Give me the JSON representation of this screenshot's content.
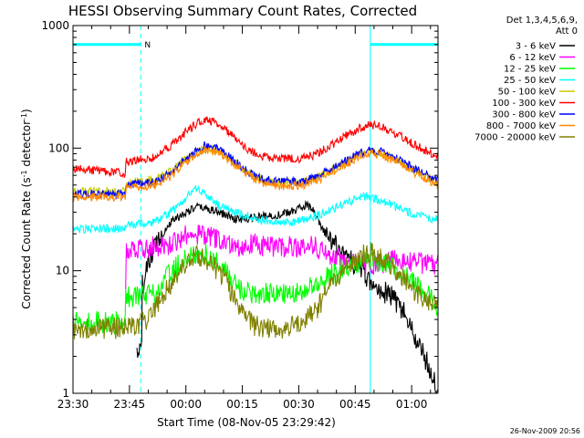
{
  "chart_data": {
    "type": "line",
    "title": "HESSI Observing Summary Count Rates, Corrected",
    "xlabel": "Start Time (08-Nov-05 23:29:42)",
    "ylabel_parts": [
      "Corrected Count Rate (s",
      "-1",
      " detector",
      "-1",
      ")"
    ],
    "yscale": "log",
    "ylim": [
      1,
      1000
    ],
    "xlim": [
      0,
      97
    ],
    "x_units": "minutes from 23:30",
    "x_ticks": [
      {
        "x": 0,
        "label": "23:30"
      },
      {
        "x": 15,
        "label": "23:45"
      },
      {
        "x": 30,
        "label": "00:00"
      },
      {
        "x": 45,
        "label": "00:15"
      },
      {
        "x": 60,
        "label": "00:30"
      },
      {
        "x": 75,
        "label": "00:45"
      },
      {
        "x": 90,
        "label": "01:00"
      }
    ],
    "y_ticks": [
      {
        "y": 1000,
        "label": "1000"
      },
      {
        "y": 100,
        "label": "100"
      },
      {
        "y": 10,
        "label": "10"
      },
      {
        "y": 1,
        "label": "1"
      }
    ],
    "legend": {
      "placement": "right",
      "header": [
        "Det 1,3,4,5,6,9,",
        "Att 0"
      ]
    },
    "night_markers": {
      "color": "#00ffff",
      "solid_lines_x": [
        0,
        79
      ],
      "dashed_lines_x": [
        18,
        97
      ],
      "bars": [
        {
          "x0": 0,
          "x1": 18
        },
        {
          "x0": 79,
          "x1": 97
        }
      ],
      "bar_y": 700,
      "label": "N",
      "label_x": 19
    },
    "series": [
      {
        "name": "3 - 6 keV",
        "color": "#000000",
        "points": [
          [
            17,
            2.2
          ],
          [
            18.3,
            2.2
          ],
          [
            18.3,
            7.5
          ],
          [
            22,
            17
          ],
          [
            26,
            25
          ],
          [
            30,
            30
          ],
          [
            33,
            33
          ],
          [
            36,
            32
          ],
          [
            40,
            29
          ],
          [
            44,
            26
          ],
          [
            48,
            27
          ],
          [
            52,
            28
          ],
          [
            56,
            29
          ],
          [
            59,
            31
          ],
          [
            62,
            35
          ],
          [
            64,
            30
          ],
          [
            66,
            22
          ],
          [
            70,
            16
          ],
          [
            74,
            12
          ],
          [
            77,
            10
          ],
          [
            80,
            7
          ],
          [
            84,
            6.5
          ],
          [
            88,
            4.5
          ],
          [
            91,
            2.8
          ],
          [
            94,
            1.8
          ],
          [
            96,
            1.3
          ],
          [
            97,
            1.1
          ]
        ]
      },
      {
        "name": "6 - 12 keV",
        "color": "#ff00ff",
        "points": [
          [
            14,
            5.8
          ],
          [
            14,
            15
          ],
          [
            17,
            15.5
          ],
          [
            22,
            15.5
          ],
          [
            25,
            16
          ],
          [
            28,
            18
          ],
          [
            31,
            20
          ],
          [
            33,
            20
          ],
          [
            36,
            19
          ],
          [
            40,
            17
          ],
          [
            44,
            16
          ],
          [
            48,
            16.5
          ],
          [
            52,
            15.5
          ],
          [
            56,
            15.5
          ],
          [
            60,
            16
          ],
          [
            64,
            16
          ],
          [
            68,
            13.5
          ],
          [
            72,
            12
          ],
          [
            76,
            11
          ],
          [
            80,
            11
          ],
          [
            84,
            12
          ],
          [
            88,
            12
          ],
          [
            92,
            11.5
          ],
          [
            97,
            11
          ]
        ]
      },
      {
        "name": "12 - 25 keV",
        "color": "#00ff00",
        "points": [
          [
            0,
            3.8
          ],
          [
            14,
            3.8
          ],
          [
            14,
            6.2
          ],
          [
            18,
            6.2
          ],
          [
            22,
            6.5
          ],
          [
            24,
            8
          ],
          [
            27,
            10.5
          ],
          [
            30,
            12.5
          ],
          [
            33,
            14
          ],
          [
            36,
            13.5
          ],
          [
            39,
            11.5
          ],
          [
            42,
            8.5
          ],
          [
            45,
            6.8
          ],
          [
            50,
            6.5
          ],
          [
            55,
            6.5
          ],
          [
            60,
            6.6
          ],
          [
            64,
            7.5
          ],
          [
            68,
            9
          ],
          [
            72,
            10.5
          ],
          [
            76,
            11.5
          ],
          [
            80,
            12
          ],
          [
            84,
            11.5
          ],
          [
            88,
            9.5
          ],
          [
            92,
            7.5
          ],
          [
            95,
            6
          ],
          [
            97,
            5
          ]
        ]
      },
      {
        "name": "25 - 50 keV",
        "color": "#00ffff",
        "points": [
          [
            0,
            22
          ],
          [
            14,
            22
          ],
          [
            14,
            24
          ],
          [
            18,
            24
          ],
          [
            22,
            25
          ],
          [
            26,
            30
          ],
          [
            29,
            36
          ],
          [
            31,
            42
          ],
          [
            33,
            48
          ],
          [
            35,
            42
          ],
          [
            38,
            35
          ],
          [
            42,
            31
          ],
          [
            46,
            28
          ],
          [
            50,
            26
          ],
          [
            54,
            25
          ],
          [
            58,
            25
          ],
          [
            62,
            26
          ],
          [
            66,
            29
          ],
          [
            70,
            33
          ],
          [
            74,
            37
          ],
          [
            77,
            40
          ],
          [
            80,
            39
          ],
          [
            84,
            35
          ],
          [
            88,
            31
          ],
          [
            92,
            28
          ],
          [
            97,
            26
          ]
        ]
      },
      {
        "name": "50 - 100 keV",
        "color": "#cccc00",
        "points": [
          [
            0,
            44
          ],
          [
            14,
            44
          ],
          [
            14,
            52
          ],
          [
            22,
            56
          ],
          [
            26,
            65
          ],
          [
            30,
            82
          ],
          [
            33,
            95
          ],
          [
            35,
            100
          ],
          [
            38,
            96
          ],
          [
            42,
            80
          ],
          [
            46,
            64
          ],
          [
            50,
            55
          ],
          [
            55,
            52
          ],
          [
            60,
            52
          ],
          [
            64,
            56
          ],
          [
            68,
            64
          ],
          [
            72,
            76
          ],
          [
            76,
            88
          ],
          [
            79,
            94
          ],
          [
            82,
            91
          ],
          [
            86,
            80
          ],
          [
            90,
            68
          ],
          [
            94,
            58
          ],
          [
            97,
            52
          ]
        ]
      },
      {
        "name": "100 - 300 keV",
        "color": "#ff0000",
        "points": [
          [
            0,
            68
          ],
          [
            6,
            66
          ],
          [
            14,
            62
          ],
          [
            14,
            78
          ],
          [
            22,
            84
          ],
          [
            26,
            105
          ],
          [
            30,
            135
          ],
          [
            33,
            160
          ],
          [
            35,
            170
          ],
          [
            38,
            162
          ],
          [
            42,
            130
          ],
          [
            46,
            100
          ],
          [
            50,
            86
          ],
          [
            55,
            82
          ],
          [
            60,
            82
          ],
          [
            64,
            88
          ],
          [
            68,
            102
          ],
          [
            72,
            124
          ],
          [
            76,
            145
          ],
          [
            79,
            155
          ],
          [
            82,
            150
          ],
          [
            86,
            130
          ],
          [
            90,
            110
          ],
          [
            94,
            95
          ],
          [
            97,
            85
          ]
        ]
      },
      {
        "name": "300 - 800 keV",
        "color": "#0000ff",
        "points": [
          [
            0,
            42
          ],
          [
            14,
            42
          ],
          [
            14,
            50
          ],
          [
            22,
            53
          ],
          [
            26,
            64
          ],
          [
            30,
            82
          ],
          [
            33,
            98
          ],
          [
            35,
            105
          ],
          [
            38,
            100
          ],
          [
            42,
            83
          ],
          [
            46,
            66
          ],
          [
            50,
            56
          ],
          [
            55,
            53
          ],
          [
            60,
            53
          ],
          [
            64,
            57
          ],
          [
            68,
            65
          ],
          [
            72,
            78
          ],
          [
            76,
            90
          ],
          [
            79,
            96
          ],
          [
            82,
            94
          ],
          [
            86,
            83
          ],
          [
            90,
            70
          ],
          [
            94,
            60
          ],
          [
            97,
            55
          ]
        ]
      },
      {
        "name": "800 - 7000 keV",
        "color": "#ff8800",
        "points": [
          [
            0,
            40
          ],
          [
            14,
            40
          ],
          [
            14,
            47
          ],
          [
            22,
            50
          ],
          [
            26,
            60
          ],
          [
            30,
            77
          ],
          [
            33,
            90
          ],
          [
            35,
            97
          ],
          [
            38,
            93
          ],
          [
            42,
            77
          ],
          [
            46,
            62
          ],
          [
            50,
            52
          ],
          [
            55,
            49
          ],
          [
            60,
            49
          ],
          [
            64,
            53
          ],
          [
            68,
            61
          ],
          [
            72,
            73
          ],
          [
            76,
            85
          ],
          [
            79,
            90
          ],
          [
            82,
            88
          ],
          [
            86,
            77
          ],
          [
            90,
            65
          ],
          [
            94,
            56
          ],
          [
            97,
            50
          ]
        ]
      },
      {
        "name": "7000 - 20000 keV",
        "color": "#808000",
        "points": [
          [
            0,
            3.4
          ],
          [
            12,
            3.4
          ],
          [
            16,
            3.5
          ],
          [
            19,
            3.8
          ],
          [
            22,
            5
          ],
          [
            25,
            7
          ],
          [
            28,
            10
          ],
          [
            31,
            12
          ],
          [
            33,
            13
          ],
          [
            36,
            12
          ],
          [
            40,
            9
          ],
          [
            44,
            5
          ],
          [
            48,
            3.6
          ],
          [
            52,
            3.4
          ],
          [
            56,
            3.4
          ],
          [
            60,
            3.6
          ],
          [
            64,
            4.5
          ],
          [
            68,
            7
          ],
          [
            72,
            10
          ],
          [
            76,
            13
          ],
          [
            79,
            14
          ],
          [
            82,
            13
          ],
          [
            86,
            10
          ],
          [
            90,
            7
          ],
          [
            94,
            5.5
          ],
          [
            97,
            5
          ]
        ]
      }
    ]
  },
  "footer": {
    "timestamp": "26-Nov-2009 20:56"
  }
}
